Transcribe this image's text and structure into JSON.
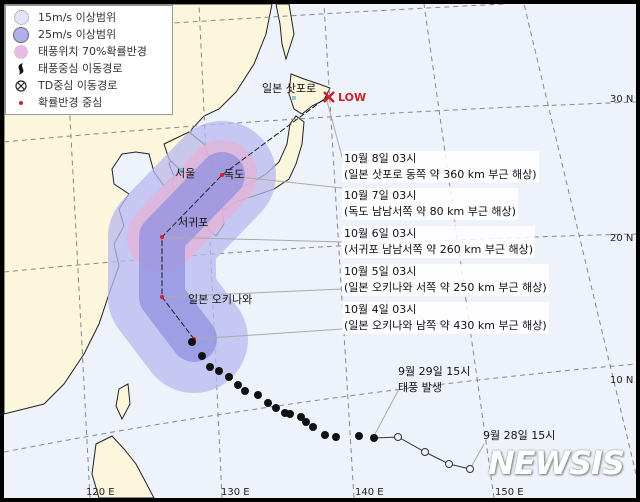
{
  "legend": {
    "items": [
      {
        "label": "15m/s 이상범위",
        "icon": "dotted-circle-light-purple",
        "color": "#dcdcf4"
      },
      {
        "label": "25m/s 이상범위",
        "icon": "circle-purple",
        "color": "#a9a9ea"
      },
      {
        "label": "태풍위치 70%확률반경",
        "icon": "circle-pink",
        "color": "#e6bde0"
      },
      {
        "label": "태풍중심 이동경로",
        "icon": "typhoon-symbol"
      },
      {
        "label": "TD중심 이동경로",
        "icon": "td-circle-x"
      },
      {
        "label": "확률반경 중심",
        "icon": "red-dot",
        "color": "#d02030"
      }
    ]
  },
  "places": {
    "sapporo": "일본 삿포로",
    "low": "LOW",
    "seoul": "서울",
    "dokdo": "독도",
    "seogwipo": "서귀포",
    "okinawa": "일본 오키나와"
  },
  "forecasts": [
    {
      "time": "10월 8일 03시",
      "desc": "(일본 삿포로 동쪽 약 360 km 부근 해상)"
    },
    {
      "time": "10월 7일 03시",
      "desc": "(독도 남남서쪽 약 80 km 부근 해상)"
    },
    {
      "time": "10월 6일 03시",
      "desc": "(서귀포 남남서쪽 약 260 km 부근 해상)"
    },
    {
      "time": "10월 5일 03시",
      "desc": "(일본 오키나와 서쪽 약 250 km 부근 해상)"
    },
    {
      "time": "10월 4일 03시",
      "desc": "(일본 오키나와 남쪽 약 430 km 부근 해상)"
    }
  ],
  "events": {
    "genesis_time": "9월 29일 15시",
    "genesis_label": "태풍 발생",
    "start_time": "9월 28일 15시"
  },
  "axes": {
    "lon": [
      "120 E",
      "130 E",
      "140 E",
      "150 E"
    ],
    "lat": [
      "30 N",
      "20 N",
      "10 N"
    ]
  },
  "colors": {
    "sea": "#eef2fb",
    "land": "#fbf6dc",
    "low_marker": "#d0202a"
  },
  "watermark": "NEWSIS"
}
